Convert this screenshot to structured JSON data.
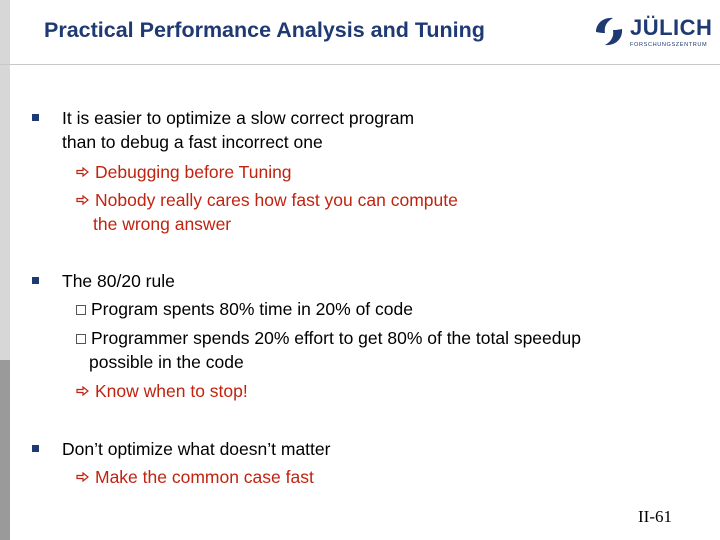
{
  "title": "Practical Performance Analysis and Tuning",
  "logo": {
    "name": "JÜLICH",
    "sub": "FORSCHUNGSZENTRUM"
  },
  "bullets": [
    {
      "lines": [
        "It is easier to optimize a slow correct program",
        "than to debug a fast incorrect one"
      ],
      "subs": [
        {
          "type": "arrow",
          "lines": [
            "Debugging before Tuning"
          ]
        },
        {
          "type": "arrow",
          "lines": [
            "Nobody really cares how fast you can compute",
            "the wrong answer"
          ]
        }
      ]
    },
    {
      "lines": [
        "The 80/20 rule"
      ],
      "subs": [
        {
          "type": "check",
          "lines": [
            "Program spents 80% time in 20% of code"
          ]
        },
        {
          "type": "check",
          "lines": [
            "Programmer spends 20% effort to get 80% of the total speedup",
            "possible in the code"
          ]
        },
        {
          "type": "arrow",
          "lines": [
            "Know when to stop!"
          ]
        }
      ]
    },
    {
      "lines": [
        "Don’t optimize what doesn’t matter"
      ],
      "subs": [
        {
          "type": "arrow",
          "lines": [
            "Make the common case fast"
          ]
        }
      ]
    }
  ],
  "page_number": "II-61",
  "colors": {
    "title": "#1f3a73",
    "emphasis": "#c0230f",
    "bullet": "#1f3a73"
  }
}
